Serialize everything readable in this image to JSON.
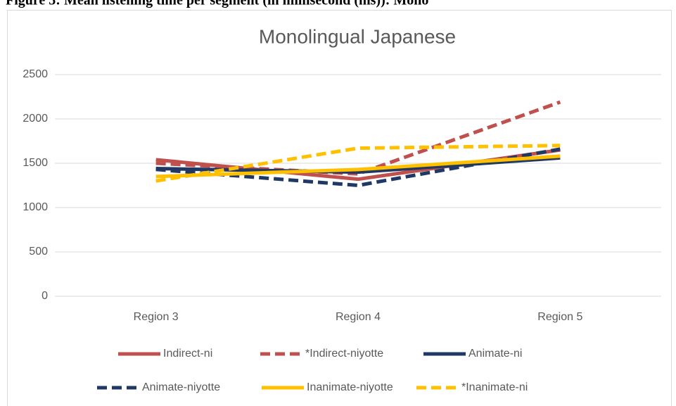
{
  "caption": "Figure 5: Mean listening time per segment (in millisecond (ms)): Mono",
  "chart_data": {
    "type": "line",
    "title": "Monolingual Japanese",
    "categories": [
      "Region 3",
      "Region 4",
      "Region 5"
    ],
    "series": [
      {
        "name": "Indirect-ni",
        "color": "#c0504d",
        "dashed": false,
        "values": [
          1540,
          1320,
          1650
        ]
      },
      {
        "name": "*Indirect-niyotte",
        "color": "#c0504d",
        "dashed": true,
        "values": [
          1500,
          1380,
          2190
        ]
      },
      {
        "name": "Animate-ni",
        "color": "#203864",
        "dashed": false,
        "values": [
          1440,
          1400,
          1560
        ]
      },
      {
        "name": "Animate-niyotte",
        "color": "#203864",
        "dashed": true,
        "values": [
          1430,
          1250,
          1660
        ]
      },
      {
        "name": "Inanimate-niyotte",
        "color": "#ffc000",
        "dashed": false,
        "values": [
          1350,
          1430,
          1580
        ]
      },
      {
        "name": "*Inanimate-ni",
        "color": "#ffc000",
        "dashed": true,
        "values": [
          1300,
          1670,
          1700
        ]
      }
    ],
    "ylim": [
      0,
      2500
    ],
    "yticks": [
      0,
      500,
      1000,
      1500,
      2000,
      2500
    ],
    "grid": true,
    "legend": "bottom"
  }
}
